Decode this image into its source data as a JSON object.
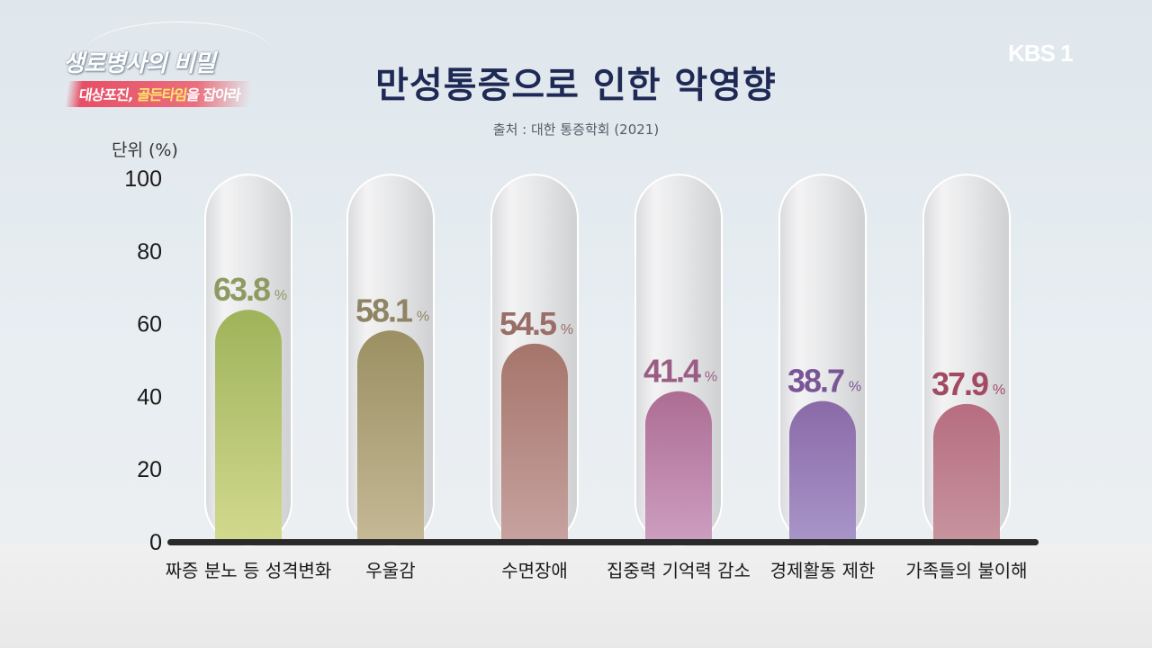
{
  "broadcast": {
    "program_name": "생로병사의 비밀",
    "episode_prefix": "대상포진, ",
    "episode_accent": "골든타임",
    "episode_suffix": "을 잡아라",
    "channel_logo": "KBS 1"
  },
  "chart_data": {
    "type": "bar",
    "title": "만성통증으로 인한 악영향",
    "subtitle": "출처 : 대한 통증학회 (2021)",
    "ylabel": "단위 (%)",
    "xlabel": "",
    "ylim": [
      0,
      100
    ],
    "yticks": [
      0,
      20,
      40,
      60,
      80,
      100
    ],
    "value_suffix": "%",
    "grid": false,
    "categories": [
      "짜증 분노 등 성격변화",
      "우울감",
      "수면장애",
      "집중력 기억력 감소",
      "경제활동 제한",
      "가족들의 불이해"
    ],
    "values": [
      63.8,
      58.1,
      54.5,
      41.4,
      38.7,
      37.9
    ],
    "value_labels": [
      "63.8",
      "58.1",
      "54.5",
      "41.4",
      "38.7",
      "37.9"
    ],
    "colors": [
      {
        "top": "#9fb35a",
        "bottom": "#d2d98e",
        "label": "#8f9a63"
      },
      {
        "top": "#9b8f63",
        "bottom": "#c5b996",
        "label": "#8f8463"
      },
      {
        "top": "#a5756a",
        "bottom": "#c7a2a0",
        "label": "#9a6e68"
      },
      {
        "top": "#ad6d93",
        "bottom": "#cc9ec0",
        "label": "#9b5d84"
      },
      {
        "top": "#8a6aa8",
        "bottom": "#a895c8",
        "label": "#7a5596"
      },
      {
        "top": "#b66d7f",
        "bottom": "#c7949e",
        "label": "#a24a62"
      }
    ]
  }
}
